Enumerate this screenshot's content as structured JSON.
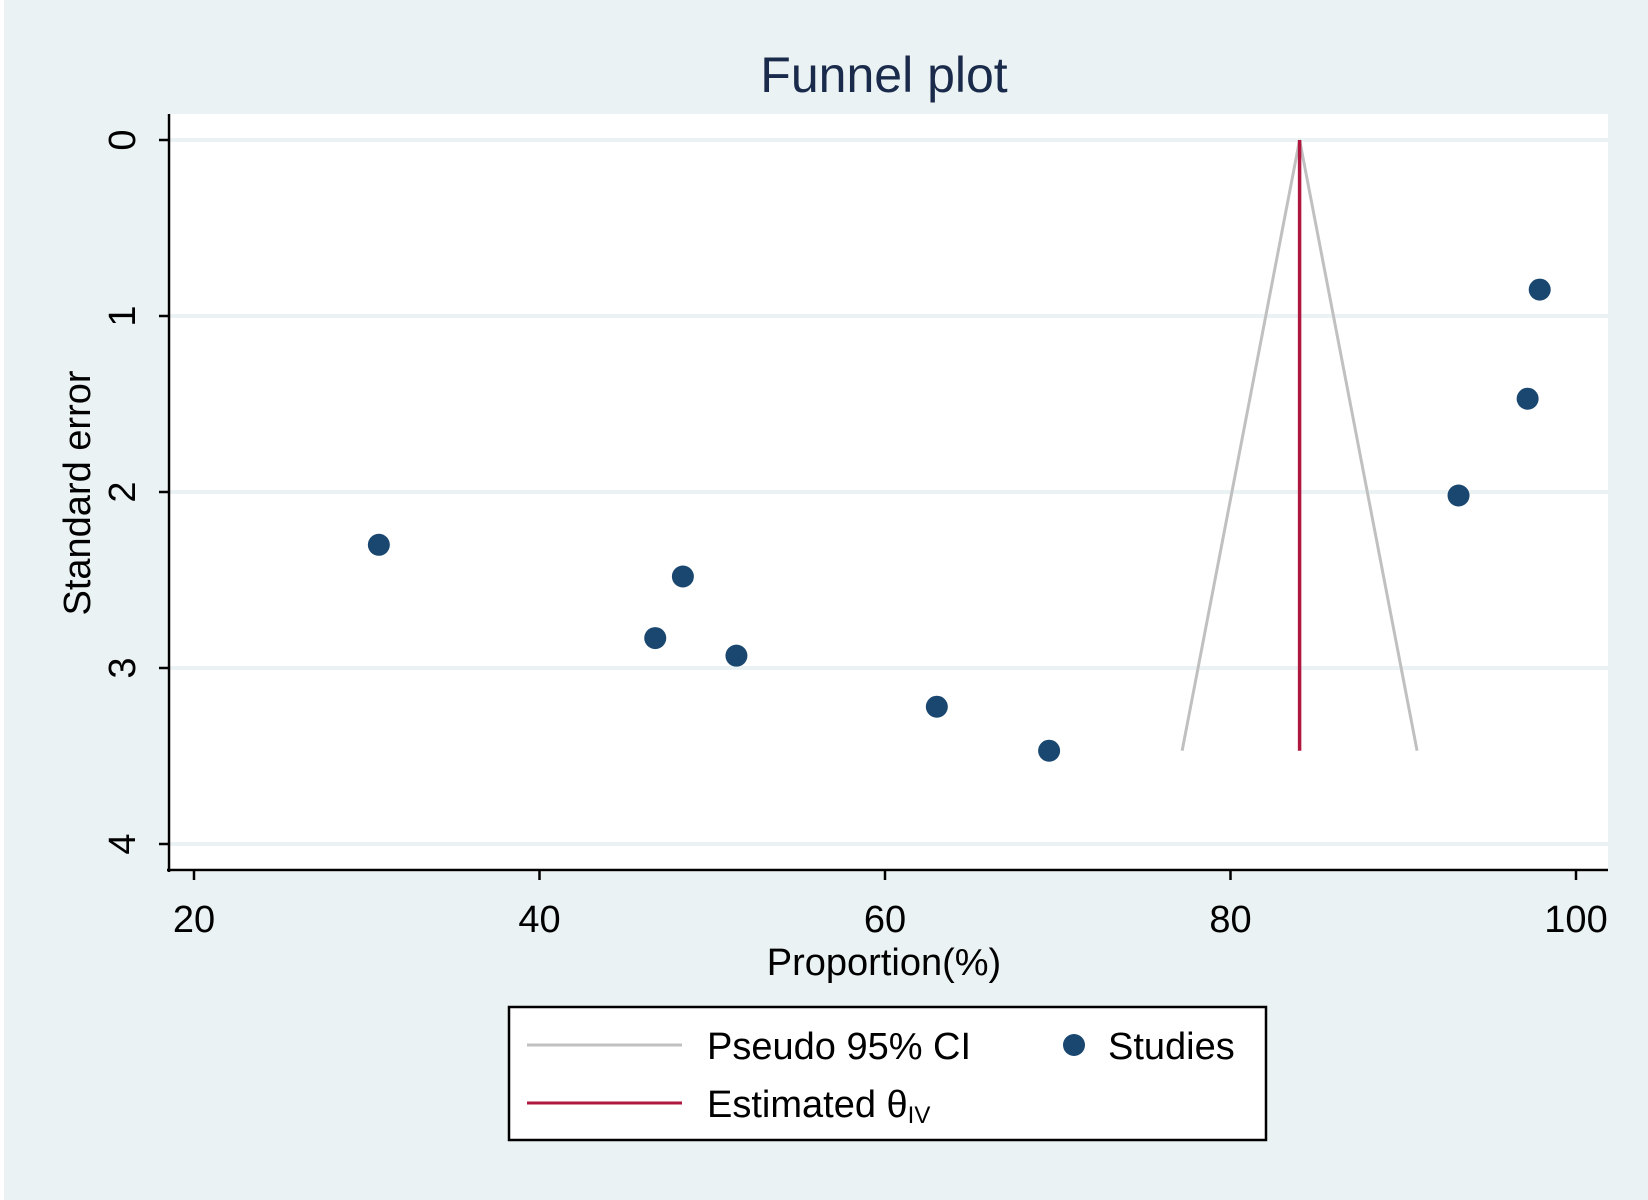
{
  "chart_data": {
    "type": "scatter",
    "title": "Funnel plot",
    "xlabel": "Proportion(%)",
    "ylabel": "Standard error",
    "xlim": [
      20,
      100
    ],
    "ylim": [
      0,
      4
    ],
    "y_reversed": true,
    "x_ticks": [
      20,
      40,
      60,
      80,
      100
    ],
    "y_ticks": [
      0,
      1,
      2,
      3,
      4
    ],
    "grid": "horizontal",
    "legend_position": "bottom",
    "colors": {
      "frame": "#eaf2f3",
      "plot": "#ffffff",
      "grid": "#eaf2f3",
      "points": "#1a476f",
      "ci": "#c0c0c0",
      "estimate": "#b0173e",
      "text": "#000000",
      "title": "#1a2a4a"
    },
    "series": [
      {
        "name": "Studies",
        "points": [
          {
            "x": 30.7,
            "y": 2.3
          },
          {
            "x": 48.3,
            "y": 2.48
          },
          {
            "x": 46.7,
            "y": 2.83
          },
          {
            "x": 51.4,
            "y": 2.93
          },
          {
            "x": 63.0,
            "y": 3.22
          },
          {
            "x": 69.5,
            "y": 3.47
          },
          {
            "x": 93.2,
            "y": 2.02
          },
          {
            "x": 97.2,
            "y": 1.47
          },
          {
            "x": 97.9,
            "y": 0.85
          }
        ]
      }
    ],
    "ci_lines": {
      "name": "Pseudo 95% CI",
      "left": [
        [
          84.0,
          0
        ],
        [
          77.2,
          3.47
        ]
      ],
      "right": [
        [
          84.0,
          0
        ],
        [
          90.8,
          3.47
        ]
      ]
    },
    "estimate_line": {
      "name": "Estimated θ",
      "subscript": "IV",
      "x": 84.0,
      "y": [
        0,
        3.47
      ]
    }
  }
}
